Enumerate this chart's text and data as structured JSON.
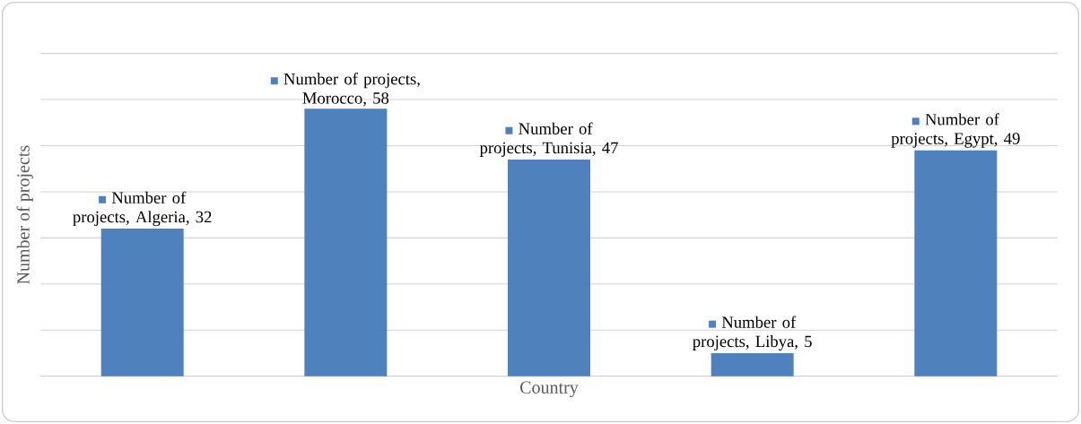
{
  "chart_data": {
    "type": "bar",
    "xlabel": "Country",
    "ylabel": "Number of projects",
    "categories": [
      null,
      null,
      null,
      null,
      null
    ],
    "values": [
      32,
      58,
      47,
      5,
      49
    ],
    "value_labels": [
      "Number of projects, Algeria, 32",
      "Number of projects, Morocco, 58",
      "Number of projects, Tunisia, 47",
      "Number of projects, Libya, 5",
      "Number of projects, Egypt, 49"
    ],
    "color": "#4f81bd",
    "ylim": [
      0,
      70
    ],
    "yticks": [
      {
        "value": 0,
        "label": null
      },
      {
        "value": 10,
        "label": null
      },
      {
        "value": 20,
        "label": null
      },
      {
        "value": 30,
        "label": null
      },
      {
        "value": 40,
        "label": null
      },
      {
        "value": 50,
        "label": null
      },
      {
        "value": 60,
        "label": null
      },
      {
        "value": 70,
        "label": null
      }
    ],
    "grid": "y"
  }
}
